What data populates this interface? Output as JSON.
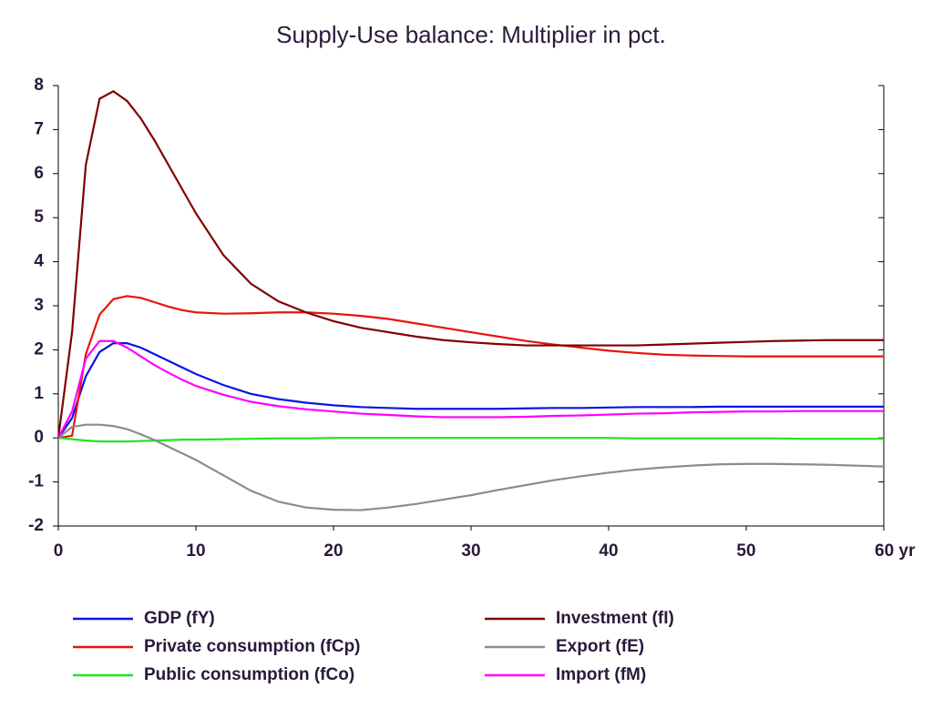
{
  "chart_data": {
    "type": "line",
    "title": "Supply-Use balance: Multiplier in pct.",
    "x": [
      0,
      1,
      2,
      3,
      4,
      5,
      6,
      7,
      8,
      9,
      10,
      12,
      14,
      16,
      18,
      20,
      22,
      24,
      26,
      28,
      30,
      32,
      34,
      36,
      38,
      40,
      42,
      44,
      46,
      48,
      50,
      52,
      54,
      56,
      58,
      60
    ],
    "xlim": [
      0,
      60
    ],
    "xticks": [
      0,
      10,
      20,
      30,
      40,
      50,
      {
        "value": 60,
        "label": "60 yr"
      }
    ],
    "ylim": [
      -2,
      8
    ],
    "yticks": [
      -2,
      -1,
      0,
      1,
      2,
      3,
      4,
      5,
      6,
      7,
      8
    ],
    "series": [
      {
        "name": "GDP (fY)",
        "color": "#0a14e6",
        "values": [
          0,
          0.45,
          1.4,
          1.95,
          2.15,
          2.15,
          2.05,
          1.9,
          1.75,
          1.6,
          1.45,
          1.2,
          1.0,
          0.88,
          0.8,
          0.74,
          0.7,
          0.68,
          0.66,
          0.66,
          0.66,
          0.66,
          0.67,
          0.68,
          0.68,
          0.69,
          0.7,
          0.7,
          0.7,
          0.71,
          0.71,
          0.71,
          0.71,
          0.71,
          0.71,
          0.71
        ]
      },
      {
        "name": "Private consumption (fCp)",
        "color": "#e8140a",
        "values": [
          0,
          0.05,
          1.9,
          2.8,
          3.15,
          3.22,
          3.18,
          3.08,
          2.98,
          2.9,
          2.85,
          2.82,
          2.83,
          2.85,
          2.85,
          2.82,
          2.77,
          2.7,
          2.6,
          2.5,
          2.4,
          2.3,
          2.2,
          2.12,
          2.05,
          1.98,
          1.93,
          1.89,
          1.87,
          1.86,
          1.85,
          1.85,
          1.85,
          1.85,
          1.85,
          1.85
        ]
      },
      {
        "name": "Public consumption (fCo)",
        "color": "#1ee61e",
        "values": [
          0,
          -0.03,
          -0.06,
          -0.08,
          -0.08,
          -0.08,
          -0.07,
          -0.06,
          -0.05,
          -0.04,
          -0.04,
          -0.03,
          -0.02,
          -0.01,
          -0.01,
          0,
          0,
          0,
          0,
          0,
          0,
          0,
          0,
          0,
          0,
          0,
          -0.01,
          -0.01,
          -0.01,
          -0.01,
          -0.01,
          -0.01,
          -0.02,
          -0.02,
          -0.02,
          -0.02
        ]
      },
      {
        "name": "Investment (fI)",
        "color": "#800000",
        "values": [
          0,
          2.4,
          6.2,
          7.7,
          7.87,
          7.65,
          7.25,
          6.75,
          6.2,
          5.65,
          5.1,
          4.15,
          3.5,
          3.1,
          2.85,
          2.65,
          2.5,
          2.4,
          2.3,
          2.22,
          2.17,
          2.13,
          2.1,
          2.1,
          2.1,
          2.1,
          2.1,
          2.12,
          2.14,
          2.16,
          2.18,
          2.2,
          2.21,
          2.22,
          2.22,
          2.22
        ]
      },
      {
        "name": "Export (fE)",
        "color": "#8c8c8c",
        "values": [
          0,
          0.25,
          0.3,
          0.3,
          0.27,
          0.2,
          0.08,
          -0.05,
          -0.2,
          -0.35,
          -0.5,
          -0.85,
          -1.2,
          -1.45,
          -1.58,
          -1.63,
          -1.64,
          -1.58,
          -1.5,
          -1.4,
          -1.3,
          -1.18,
          -1.07,
          -0.96,
          -0.87,
          -0.79,
          -0.72,
          -0.67,
          -0.63,
          -0.6,
          -0.59,
          -0.59,
          -0.6,
          -0.61,
          -0.63,
          -0.65
        ]
      },
      {
        "name": "Import (fM)",
        "color": "#ff00ff",
        "values": [
          0,
          0.6,
          1.8,
          2.2,
          2.2,
          2.05,
          1.85,
          1.65,
          1.48,
          1.32,
          1.18,
          0.98,
          0.82,
          0.72,
          0.65,
          0.6,
          0.55,
          0.52,
          0.49,
          0.47,
          0.47,
          0.47,
          0.48,
          0.5,
          0.51,
          0.53,
          0.55,
          0.56,
          0.58,
          0.59,
          0.6,
          0.6,
          0.61,
          0.61,
          0.61,
          0.61
        ]
      }
    ]
  }
}
